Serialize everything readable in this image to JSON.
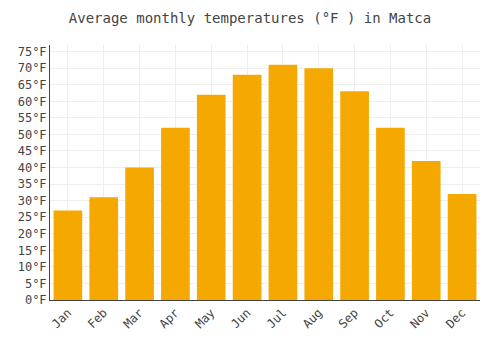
{
  "chart_data": {
    "type": "bar",
    "title": "Average monthly temperatures (°F ) in Matca",
    "categories": [
      "Jan",
      "Feb",
      "Mar",
      "Apr",
      "May",
      "Jun",
      "Jul",
      "Aug",
      "Sep",
      "Oct",
      "Nov",
      "Dec"
    ],
    "values": [
      27,
      31,
      40,
      52,
      62,
      68,
      71,
      70,
      63,
      52,
      42,
      32
    ],
    "color": "#F5A800",
    "ylim": [
      0,
      77
    ],
    "yticks": [
      {
        "value": 0,
        "label": "0°F"
      },
      {
        "value": 5,
        "label": "5°F"
      },
      {
        "value": 10,
        "label": "10°F"
      },
      {
        "value": 15,
        "label": "15°F"
      },
      {
        "value": 20,
        "label": "20°F"
      },
      {
        "value": 25,
        "label": "25°F"
      },
      {
        "value": 30,
        "label": "30°F"
      },
      {
        "value": 35,
        "label": "35°F"
      },
      {
        "value": 40,
        "label": "40°F"
      },
      {
        "value": 45,
        "label": "45°F"
      },
      {
        "value": 50,
        "label": "50°F"
      },
      {
        "value": 55,
        "label": "55°F"
      },
      {
        "value": 60,
        "label": "60°F"
      },
      {
        "value": 65,
        "label": "65°F"
      },
      {
        "value": 70,
        "label": "70°F"
      },
      {
        "value": 75,
        "label": "75°F"
      }
    ],
    "grid": true
  }
}
